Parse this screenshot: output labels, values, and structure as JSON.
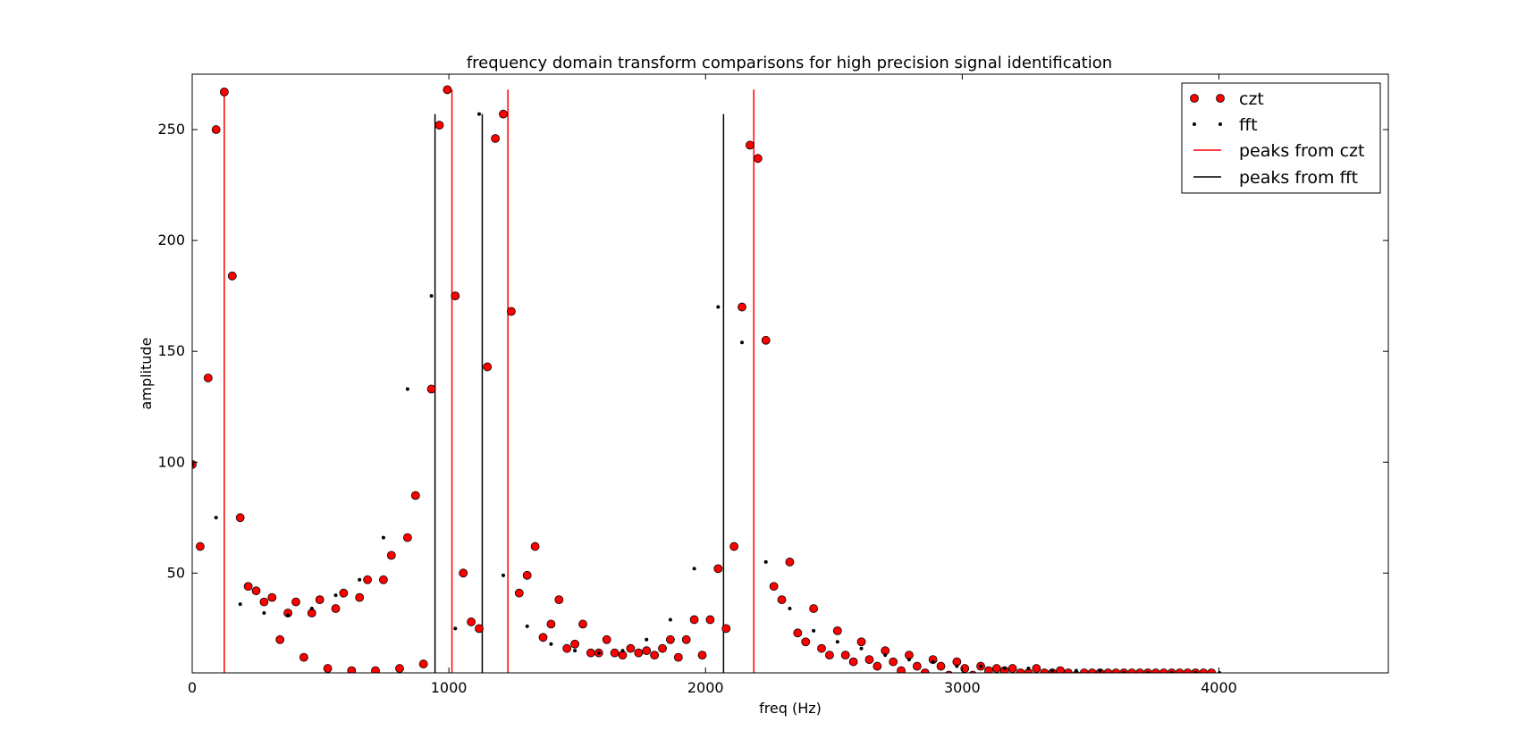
{
  "chart_data": {
    "type": "scatter",
    "title": "frequency domain transform comparisons for high precision signal identification",
    "xlabel": "freq (Hz)",
    "ylabel": "amplitude",
    "xlim": [
      0,
      4660
    ],
    "ylim": [
      5,
      275
    ],
    "xticks": [
      0,
      1000,
      2000,
      3000,
      4000
    ],
    "yticks": [
      50,
      100,
      150,
      200,
      250
    ],
    "legend_position": "top-right",
    "colors": {
      "czt": "#ff0000",
      "fft": "#000000",
      "czt_peak": "#ff0000",
      "fft_peak": "#000000"
    },
    "series": [
      {
        "name": "czt",
        "marker": "circle",
        "points": [
          [
            0,
            99
          ],
          [
            31,
            62
          ],
          [
            62,
            138
          ],
          [
            93,
            250
          ],
          [
            125,
            267
          ],
          [
            156,
            184
          ],
          [
            187,
            75
          ],
          [
            218,
            44
          ],
          [
            249,
            42
          ],
          [
            280,
            37
          ],
          [
            311,
            39
          ],
          [
            342,
            20
          ],
          [
            373,
            32
          ],
          [
            404,
            37
          ],
          [
            435,
            12
          ],
          [
            466,
            32
          ],
          [
            497,
            38
          ],
          [
            528,
            7
          ],
          [
            559,
            34
          ],
          [
            590,
            41
          ],
          [
            621,
            6
          ],
          [
            652,
            39
          ],
          [
            683,
            47
          ],
          [
            714,
            6
          ],
          [
            745,
            47
          ],
          [
            776,
            58
          ],
          [
            808,
            7
          ],
          [
            839,
            66
          ],
          [
            870,
            85
          ],
          [
            901,
            9
          ],
          [
            932,
            133
          ],
          [
            963,
            252
          ],
          [
            994,
            268
          ],
          [
            1025,
            175
          ],
          [
            1056,
            50
          ],
          [
            1087,
            28
          ],
          [
            1118,
            25
          ],
          [
            1150,
            143
          ],
          [
            1181,
            246
          ],
          [
            1212,
            257
          ],
          [
            1243,
            168
          ],
          [
            1274,
            41
          ],
          [
            1305,
            49
          ],
          [
            1336,
            62
          ],
          [
            1367,
            21
          ],
          [
            1398,
            27
          ],
          [
            1429,
            38
          ],
          [
            1460,
            16
          ],
          [
            1491,
            18
          ],
          [
            1522,
            27
          ],
          [
            1553,
            14
          ],
          [
            1584,
            14
          ],
          [
            1615,
            20
          ],
          [
            1646,
            14
          ],
          [
            1677,
            13
          ],
          [
            1708,
            16
          ],
          [
            1739,
            14
          ],
          [
            1770,
            15
          ],
          [
            1801,
            13
          ],
          [
            1832,
            16
          ],
          [
            1863,
            20
          ],
          [
            1894,
            12
          ],
          [
            1925,
            20
          ],
          [
            1956,
            29
          ],
          [
            1987,
            13
          ],
          [
            2018,
            29
          ],
          [
            2049,
            52
          ],
          [
            2080,
            25
          ],
          [
            2111,
            62
          ],
          [
            2142,
            170
          ],
          [
            2173,
            243
          ],
          [
            2204,
            237
          ],
          [
            2235,
            155
          ],
          [
            2266,
            44
          ],
          [
            2297,
            38
          ],
          [
            2328,
            55
          ],
          [
            2359,
            23
          ],
          [
            2390,
            19
          ],
          [
            2421,
            34
          ],
          [
            2452,
            16
          ],
          [
            2483,
            13
          ],
          [
            2514,
            24
          ],
          [
            2545,
            13
          ],
          [
            2576,
            10
          ],
          [
            2607,
            19
          ],
          [
            2638,
            11
          ],
          [
            2669,
            8
          ],
          [
            2700,
            15
          ],
          [
            2731,
            10
          ],
          [
            2762,
            6
          ],
          [
            2793,
            13
          ],
          [
            2824,
            8
          ],
          [
            2855,
            5
          ],
          [
            2886,
            11
          ],
          [
            2917,
            8
          ],
          [
            2948,
            4
          ],
          [
            2979,
            10
          ],
          [
            3010,
            7
          ],
          [
            3041,
            4
          ],
          [
            3072,
            8
          ],
          [
            3103,
            6
          ],
          [
            3134,
            7
          ],
          [
            3165,
            6
          ],
          [
            3196,
            7
          ],
          [
            3227,
            5
          ],
          [
            3258,
            5
          ],
          [
            3289,
            7
          ],
          [
            3320,
            5
          ],
          [
            3351,
            5
          ],
          [
            3382,
            6
          ],
          [
            3413,
            5
          ],
          [
            3444,
            4
          ],
          [
            3475,
            5
          ],
          [
            3506,
            5
          ],
          [
            3537,
            5
          ],
          [
            3568,
            5
          ],
          [
            3599,
            5
          ],
          [
            3630,
            5
          ],
          [
            3661,
            5
          ],
          [
            3692,
            5
          ],
          [
            3723,
            5
          ],
          [
            3754,
            5
          ],
          [
            3785,
            5
          ],
          [
            3816,
            5
          ],
          [
            3847,
            5
          ],
          [
            3878,
            5
          ],
          [
            3909,
            5
          ],
          [
            3940,
            5
          ],
          [
            3971,
            5
          ]
        ]
      },
      {
        "name": "fft",
        "marker": "dot",
        "points": [
          [
            0,
            99
          ],
          [
            93,
            75
          ],
          [
            187,
            36
          ],
          [
            280,
            32
          ],
          [
            373,
            31
          ],
          [
            466,
            34
          ],
          [
            559,
            40
          ],
          [
            652,
            47
          ],
          [
            745,
            66
          ],
          [
            839,
            133
          ],
          [
            932,
            175
          ],
          [
            1025,
            25
          ],
          [
            1118,
            257
          ],
          [
            1212,
            49
          ],
          [
            1305,
            26
          ],
          [
            1398,
            18
          ],
          [
            1491,
            15
          ],
          [
            1584,
            14
          ],
          [
            1677,
            15
          ],
          [
            1770,
            20
          ],
          [
            1863,
            29
          ],
          [
            1956,
            52
          ],
          [
            2049,
            170
          ],
          [
            2142,
            154
          ],
          [
            2235,
            55
          ],
          [
            2328,
            34
          ],
          [
            2421,
            24
          ],
          [
            2514,
            19
          ],
          [
            2607,
            16
          ],
          [
            2700,
            13
          ],
          [
            2793,
            11
          ],
          [
            2886,
            10
          ],
          [
            2979,
            8
          ],
          [
            3072,
            8
          ],
          [
            3165,
            7
          ],
          [
            3258,
            7
          ],
          [
            3351,
            6
          ],
          [
            3444,
            6
          ],
          [
            3537,
            6
          ],
          [
            3630,
            5
          ],
          [
            3723,
            5
          ],
          [
            3816,
            5
          ],
          [
            3909,
            5
          ],
          [
            4002,
            5
          ]
        ]
      },
      {
        "name": "peaks from czt",
        "type": "vlines",
        "points": [
          [
            125,
            268
          ],
          [
            1012,
            268
          ],
          [
            1230,
            268
          ],
          [
            2188,
            268
          ]
        ]
      },
      {
        "name": "peaks from fft",
        "type": "vlines",
        "points": [
          [
            946,
            257
          ],
          [
            1130,
            257
          ],
          [
            2070,
            257
          ]
        ]
      }
    ]
  }
}
